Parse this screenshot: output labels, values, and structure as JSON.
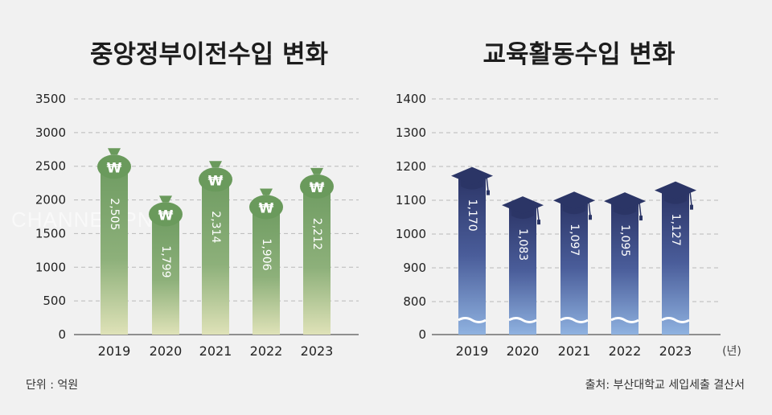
{
  "watermark": "CHANNEL PNU",
  "footer": {
    "unit": "단위 : 억원",
    "source": "출처: 부산대학교 세입세출 결산서"
  },
  "colors": {
    "left_bar_top": "#6f9c62",
    "left_bar_bottom": "#dfe2b8",
    "right_bar_top": "#2c3567",
    "right_bar_bottom": "#8fb2e0",
    "grid": "#b9b9b9",
    "bag": "#6a9a5c",
    "cap": "#2b3566"
  },
  "chart_data": [
    {
      "type": "bar",
      "title": "중앙정부이전수입 변화",
      "categories": [
        "2019",
        "2020",
        "2021",
        "2022",
        "2023"
      ],
      "values": [
        2505,
        1799,
        2314,
        1906,
        2212
      ],
      "value_labels": [
        "2,505",
        "1,799",
        "2,314",
        "1,906",
        "2,212"
      ],
      "yticks": [
        "0",
        "500",
        "1000",
        "1500",
        "2000",
        "2500",
        "3000",
        "3500"
      ],
      "ylim": [
        0,
        3500
      ],
      "grid": true,
      "decoration": "money-bag-icon"
    },
    {
      "type": "bar",
      "title": "교육활동수입 변화",
      "categories": [
        "2019",
        "2020",
        "2021",
        "2022",
        "2023"
      ],
      "values": [
        1170,
        1083,
        1097,
        1095,
        1127
      ],
      "value_labels": [
        "1,170",
        "1,083",
        "1,097",
        "1,095",
        "1,127"
      ],
      "yticks": [
        "0",
        "800",
        "900",
        "1000",
        "1100",
        "1200",
        "1300",
        "1400"
      ],
      "ylim": [
        700,
        1400
      ],
      "axis_break": true,
      "xunit": "(년)",
      "grid": true,
      "decoration": "graduation-cap-icon"
    }
  ]
}
